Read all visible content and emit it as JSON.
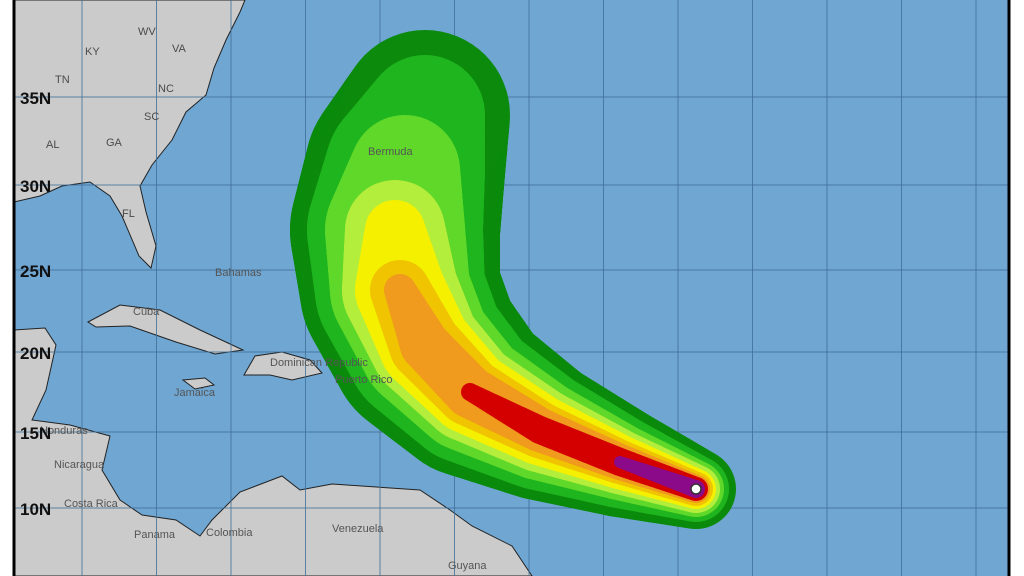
{
  "map": {
    "colors": {
      "ocean": "#6fa6d2",
      "land": "#cbcbcb",
      "grid": "#3f6f99",
      "border": "#000000"
    },
    "latitude_labels": [
      "35N",
      "30N",
      "25N",
      "20N",
      "15N",
      "10N"
    ],
    "state_labels": [
      "KY",
      "WV",
      "VA",
      "TN",
      "NC",
      "SC",
      "AL",
      "GA",
      "FL"
    ],
    "place_labels": [
      "Bermuda",
      "Bahamas",
      "Cuba",
      "Dominican Republic",
      "Puerto Rico",
      "Jamaica",
      "Honduras",
      "Nicaragua",
      "Costa Rica",
      "Panama",
      "Colombia",
      "Venezuela",
      "Guyana"
    ],
    "probability_colors": [
      "#0b8a0b",
      "#1fb51f",
      "#5fd82a",
      "#b4ee3c",
      "#f4f000",
      "#f0c400",
      "#f09a1e",
      "#d40000",
      "#8a0a8a"
    ],
    "storm_center_marker": "white-circle"
  }
}
